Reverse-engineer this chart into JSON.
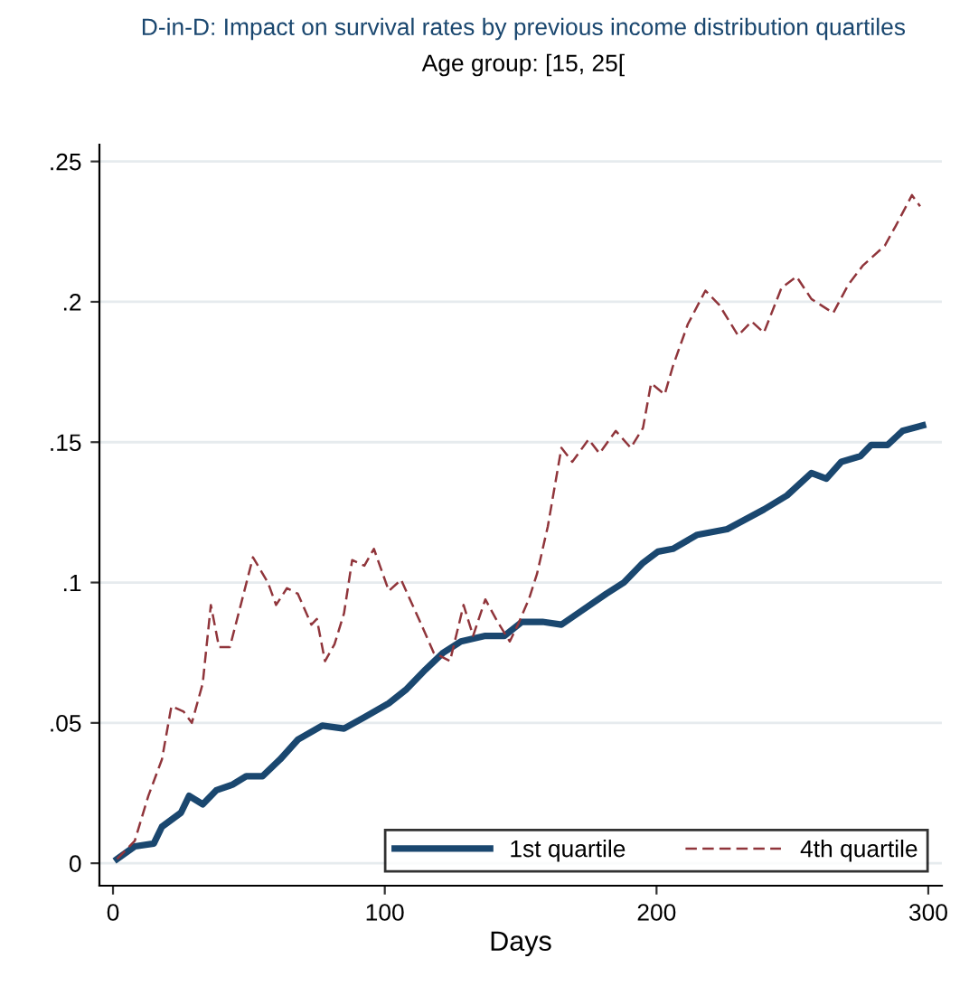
{
  "chart_data": {
    "type": "line",
    "title": "D-in-D: Impact on survival rates by previous income distribution quartiles",
    "subtitle": "Age group: [15, 25[",
    "xlabel": "Days",
    "xlim": [
      -5,
      305
    ],
    "xticks": [
      0,
      100,
      200,
      300
    ],
    "ylim": [
      -0.008,
      0.256
    ],
    "yticks": [
      {
        "value": 0,
        "label": "0"
      },
      {
        "value": 0.05,
        "label": ".05"
      },
      {
        "value": 0.1,
        "label": ".1"
      },
      {
        "value": 0.15,
        "label": ".15"
      },
      {
        "value": 0.2,
        "label": ".2"
      },
      {
        "value": 0.25,
        "label": ".25"
      }
    ],
    "grid": "y",
    "legend": "bottom right",
    "series": [
      {
        "name": "1st quartile",
        "color": "#1a476f",
        "line_style": "solid",
        "x": [
          1.5,
          8,
          15,
          18,
          25,
          28,
          33,
          38,
          44,
          49,
          55,
          61.5,
          68,
          77,
          85,
          92.5,
          101.5,
          108,
          115,
          121.5,
          128,
          137,
          144,
          150.5,
          158,
          165,
          172.5,
          181.5,
          188,
          195,
          200.5,
          206,
          215,
          226,
          239.5,
          248,
          257,
          262.5,
          268,
          275,
          279,
          285,
          290.5,
          298
        ],
        "values": [
          0.0015,
          0.006,
          0.007,
          0.013,
          0.018,
          0.024,
          0.021,
          0.026,
          0.028,
          0.031,
          0.031,
          0.037,
          0.044,
          0.049,
          0.048,
          0.052,
          0.057,
          0.062,
          0.069,
          0.075,
          0.079,
          0.081,
          0.081,
          0.086,
          0.086,
          0.085,
          0.09,
          0.096,
          0.1,
          0.107,
          0.111,
          0.112,
          0.117,
          0.119,
          0.126,
          0.131,
          0.139,
          0.137,
          0.143,
          0.145,
          0.149,
          0.149,
          0.154,
          0.156
        ]
      },
      {
        "name": "4th quartile",
        "color": "#90353b",
        "line_style": "dashed",
        "x": [
          1.5,
          8,
          13,
          18,
          21.5,
          26,
          29,
          33,
          36,
          39,
          43,
          47,
          51.5,
          57,
          60,
          64,
          68,
          73,
          75,
          78,
          81.5,
          85,
          88,
          92.5,
          96,
          101.5,
          106,
          113,
          118,
          124,
          129,
          132.5,
          137,
          141.5,
          146,
          149,
          153,
          156,
          160,
          165,
          169,
          175,
          179,
          185,
          190.5,
          195,
          198,
          203,
          206,
          211.5,
          218,
          223,
          230,
          235,
          239.5,
          246,
          251.5,
          257,
          265,
          270.5,
          276,
          284,
          288,
          294,
          297
        ],
        "values": [
          0.0015,
          0.008,
          0.024,
          0.037,
          0.056,
          0.054,
          0.05,
          0.064,
          0.092,
          0.077,
          0.077,
          0.092,
          0.109,
          0.1,
          0.092,
          0.098,
          0.096,
          0.085,
          0.087,
          0.072,
          0.078,
          0.089,
          0.108,
          0.106,
          0.112,
          0.097,
          0.101,
          0.086,
          0.075,
          0.072,
          0.092,
          0.081,
          0.094,
          0.086,
          0.079,
          0.085,
          0.094,
          0.103,
          0.12,
          0.148,
          0.143,
          0.151,
          0.146,
          0.154,
          0.148,
          0.155,
          0.171,
          0.167,
          0.177,
          0.192,
          0.204,
          0.199,
          0.188,
          0.193,
          0.189,
          0.205,
          0.209,
          0.201,
          0.196,
          0.206,
          0.213,
          0.22,
          0.227,
          0.238,
          0.234
        ]
      }
    ]
  }
}
